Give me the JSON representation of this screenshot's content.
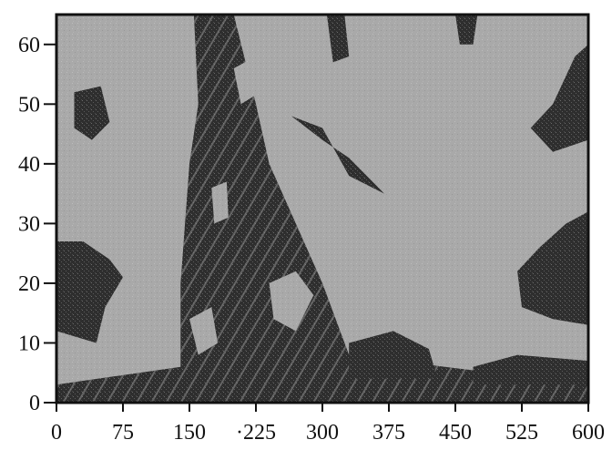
{
  "chart_data": {
    "type": "heatmap",
    "title": "",
    "xlabel": "",
    "ylabel": "",
    "xlim": [
      0,
      600
    ],
    "ylim": [
      0,
      65
    ],
    "x_ticks": [
      0,
      75,
      150,
      225,
      300,
      375,
      450,
      525,
      600
    ],
    "x_tick_labels": [
      "0",
      "75",
      "150",
      "·225",
      "300",
      "375",
      "450",
      "525",
      "600"
    ],
    "y_ticks": [
      0,
      10,
      20,
      30,
      40,
      50,
      60
    ],
    "y_tick_labels": [
      "0",
      "10",
      "20",
      "30",
      "40",
      "50",
      "60"
    ],
    "grid": false,
    "legend": "none",
    "colors": {
      "background": "#a9a9a9",
      "dark": "#2e2e2e",
      "axis": "#111111"
    },
    "dark_regions": [
      {
        "region": "band",
        "points": [
          [
            155,
            65
          ],
          [
            200,
            65
          ],
          [
            225,
            50
          ],
          [
            240,
            40
          ],
          [
            300,
            20
          ],
          [
            330,
            8
          ],
          [
            600,
            3
          ],
          [
            600,
            0
          ],
          [
            0,
            0
          ],
          [
            0,
            3
          ],
          [
            140,
            6
          ],
          [
            140,
            20
          ],
          [
            150,
            40
          ],
          [
            160,
            50
          ]
        ]
      },
      {
        "region": "lower-left",
        "points": [
          [
            0,
            27
          ],
          [
            30,
            27
          ],
          [
            60,
            24
          ],
          [
            75,
            21
          ],
          [
            55,
            16
          ],
          [
            45,
            10
          ],
          [
            0,
            12
          ]
        ]
      },
      {
        "region": "lower-middle",
        "points": [
          [
            330,
            10
          ],
          [
            380,
            12
          ],
          [
            420,
            9
          ],
          [
            430,
            4
          ],
          [
            330,
            4
          ]
        ]
      },
      {
        "region": "right-lower",
        "points": [
          [
            600,
            32
          ],
          [
            575,
            30
          ],
          [
            545,
            26
          ],
          [
            520,
            22
          ],
          [
            525,
            16
          ],
          [
            560,
            14
          ],
          [
            600,
            13
          ]
        ]
      },
      {
        "region": "right-upper",
        "points": [
          [
            600,
            60
          ],
          [
            585,
            58
          ],
          [
            560,
            50
          ],
          [
            535,
            46
          ],
          [
            560,
            42
          ],
          [
            600,
            44
          ]
        ]
      },
      {
        "region": "bottom-right",
        "points": [
          [
            470,
            6
          ],
          [
            520,
            8
          ],
          [
            600,
            7
          ],
          [
            600,
            3
          ],
          [
            470,
            3
          ]
        ]
      },
      {
        "region": "upper-middle",
        "points": [
          [
            265,
            48
          ],
          [
            300,
            46
          ],
          [
            330,
            38
          ],
          [
            370,
            35
          ],
          [
            330,
            41
          ],
          [
            300,
            44
          ]
        ]
      },
      {
        "region": "top-center",
        "points": [
          [
            305,
            65
          ],
          [
            325,
            65
          ],
          [
            330,
            58
          ],
          [
            312,
            57
          ]
        ]
      },
      {
        "region": "top-right",
        "points": [
          [
            450,
            65
          ],
          [
            475,
            65
          ],
          [
            470,
            60
          ],
          [
            455,
            60
          ]
        ]
      },
      {
        "region": "upper-left",
        "points": [
          [
            20,
            52
          ],
          [
            50,
            53
          ],
          [
            60,
            47
          ],
          [
            40,
            44
          ],
          [
            20,
            46
          ]
        ]
      }
    ],
    "light_regions": [
      {
        "region": "band-patch",
        "points": [
          [
            240,
            20
          ],
          [
            270,
            22
          ],
          [
            290,
            18
          ],
          [
            270,
            12
          ],
          [
            245,
            14
          ]
        ]
      },
      {
        "region": "band-patch",
        "points": [
          [
            200,
            56
          ],
          [
            225,
            58
          ],
          [
            230,
            52
          ],
          [
            208,
            50
          ]
        ]
      },
      {
        "region": "band-patch",
        "points": [
          [
            150,
            14
          ],
          [
            175,
            16
          ],
          [
            182,
            10
          ],
          [
            160,
            8
          ]
        ]
      },
      {
        "region": "band-patch",
        "points": [
          [
            175,
            36
          ],
          [
            192,
            37
          ],
          [
            194,
            31
          ],
          [
            178,
            30
          ]
        ]
      }
    ]
  }
}
